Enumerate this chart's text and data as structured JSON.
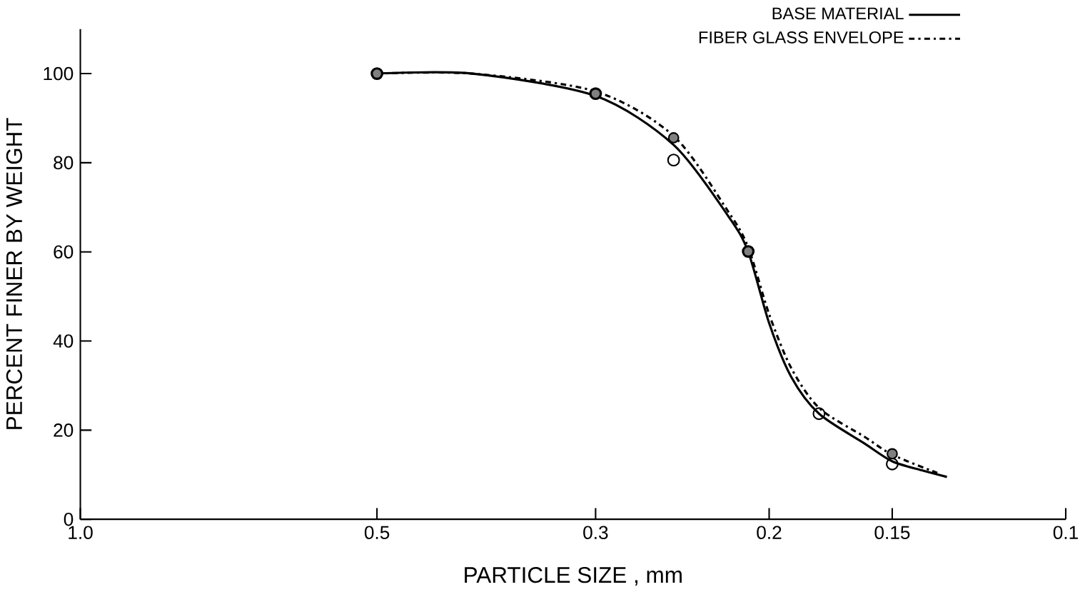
{
  "chart_data": {
    "type": "line",
    "xlabel": "PARTICLE SIZE ,    mm",
    "ylabel": "PERCENT FINER BY WEIGHT",
    "log": "x",
    "xlim": [
      1.0,
      0.1
    ],
    "ylim": [
      0,
      110
    ],
    "xticks": [
      {
        "value": 1.0,
        "label": "1.0"
      },
      0.5,
      0.3,
      0.2,
      0.15,
      0.1
    ],
    "yticks": [
      0,
      20,
      40,
      60,
      80,
      100
    ],
    "grid": false,
    "legend": "top right",
    "series": [
      {
        "name": "BASE MATERIAL",
        "line_style": "solid",
        "marker": "none",
        "color": "#000000",
        "x": [
          0.5,
          0.4,
          0.3,
          0.25,
          0.22,
          0.21,
          0.2,
          0.19,
          0.178,
          0.16,
          0.15,
          0.14,
          0.132
        ],
        "values": [
          100,
          100,
          95,
          84,
          68,
          60,
          44,
          32,
          23.7,
          17,
          13,
          11,
          9.5
        ]
      },
      {
        "name": "FIBER GLASS ENVELOPE",
        "line_style": "dashdotted",
        "marker": "none",
        "color": "#000000",
        "x": [
          0.5,
          0.4,
          0.3,
          0.25,
          0.22,
          0.21,
          0.2,
          0.19,
          0.178,
          0.16,
          0.15,
          0.135
        ],
        "values": [
          100,
          100,
          96,
          86,
          69,
          61,
          46,
          34,
          25,
          18.5,
          14.5,
          10.4
        ]
      },
      {
        "type": "scatter",
        "marker": "circle",
        "color": "#000000",
        "x": [
          0.5,
          0.3,
          0.25,
          0.21,
          0.178,
          0.15
        ],
        "values": [
          100,
          95.5,
          80.6,
          60.1,
          23.7,
          12.4
        ]
      },
      {
        "type": "scatter",
        "marker": "circle*",
        "color": "#000000",
        "x": [
          0.5,
          0.3,
          0.25,
          0.21,
          0.15
        ],
        "values": [
          100,
          95.5,
          85.6,
          60.1,
          14.7
        ]
      }
    ]
  }
}
